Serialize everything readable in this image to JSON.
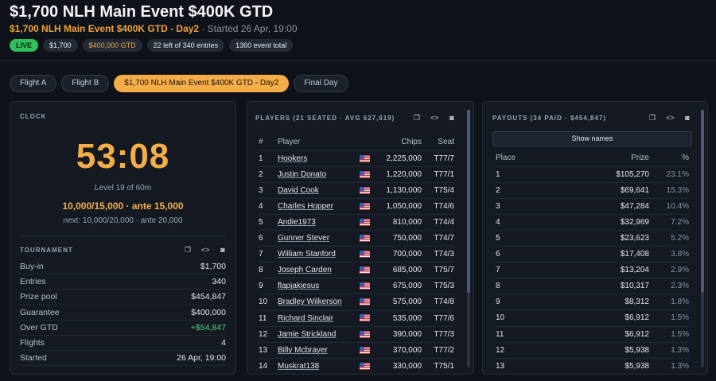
{
  "header": {
    "title": "$1,700 NLH Main Event $400K GTD",
    "event_name": "$1,700 NLH Main Event $400K GTD - Day2",
    "started": " · Started 26 Apr, 19:00",
    "badges": [
      "LIVE",
      "$1,700",
      "$400,000 GTD",
      "22 left of 340 entries",
      "1360 event total"
    ]
  },
  "tabs": [
    "Flight A",
    "Flight B",
    "$1,700 NLH Main Event $400K GTD - Day2",
    "Final Day"
  ],
  "clock": {
    "title": "CLOCK",
    "time": "53:08",
    "level": "Level 19 of 60m",
    "blinds": "10,000/15,000 · ante 15,000",
    "next": "next: 10,000/20,000 · ante 20,000"
  },
  "tournament": {
    "title": "TOURNAMENT",
    "rows": [
      {
        "label": "Buy-in",
        "value": "$1,700"
      },
      {
        "label": "Entries",
        "value": "340"
      },
      {
        "label": "Prize pool",
        "value": "$454,847"
      },
      {
        "label": "Guarantee",
        "value": "$400,000"
      },
      {
        "label": "Over GTD",
        "value": "+$54,847"
      },
      {
        "label": "Flights",
        "value": "4"
      },
      {
        "label": "Started",
        "value": "26 Apr, 19:00"
      }
    ]
  },
  "players": {
    "title": "PLAYERS (21 SEATED · AVG 627,619)",
    "columns": {
      "num": "#",
      "player": "Player",
      "chips": "Chips",
      "seat": "Seat"
    },
    "rows": [
      {
        "num": "1",
        "name": "Hookers",
        "chips": "2,225,000",
        "seat": "T77/7"
      },
      {
        "num": "2",
        "name": "Justin Donato",
        "chips": "1,220,000",
        "seat": "T77/1"
      },
      {
        "num": "3",
        "name": "David Cook",
        "chips": "1,130,000",
        "seat": "T75/4"
      },
      {
        "num": "4",
        "name": "Charles Hopper",
        "chips": "1,050,000",
        "seat": "T74/6"
      },
      {
        "num": "5",
        "name": "Andie1973",
        "chips": "810,000",
        "seat": "T74/4"
      },
      {
        "num": "6",
        "name": "Gunner Stever",
        "chips": "750,000",
        "seat": "T74/7"
      },
      {
        "num": "7",
        "name": "William Stanford",
        "chips": "700,000",
        "seat": "T74/3"
      },
      {
        "num": "8",
        "name": "Joseph Carden",
        "chips": "685,000",
        "seat": "T75/7"
      },
      {
        "num": "9",
        "name": "flapjakjesus",
        "chips": "675,000",
        "seat": "T75/3"
      },
      {
        "num": "10",
        "name": "Bradley Wilkerson",
        "chips": "575,000",
        "seat": "T74/8"
      },
      {
        "num": "11",
        "name": "Richard Sinclair",
        "chips": "535,000",
        "seat": "T77/6"
      },
      {
        "num": "12",
        "name": "Jamie Strickland",
        "chips": "390,000",
        "seat": "T77/3"
      },
      {
        "num": "13",
        "name": "Billy Mcbrayer",
        "chips": "370,000",
        "seat": "T77/2"
      },
      {
        "num": "14",
        "name": "Muskrat138",
        "chips": "330,000",
        "seat": "T75/1"
      }
    ]
  },
  "payouts": {
    "title": "PAYOUTS (34 PAID · $454,847)",
    "show_names": "Show names",
    "columns": {
      "place": "Place",
      "prize": "Prize",
      "pct": "%"
    },
    "rows": [
      {
        "place": "1",
        "prize": "$105,270",
        "pct": "23.1%"
      },
      {
        "place": "2",
        "prize": "$69,641",
        "pct": "15.3%"
      },
      {
        "place": "3",
        "prize": "$47,284",
        "pct": "10.4%"
      },
      {
        "place": "4",
        "prize": "$32,969",
        "pct": "7.2%"
      },
      {
        "place": "5",
        "prize": "$23,623",
        "pct": "5.2%"
      },
      {
        "place": "6",
        "prize": "$17,408",
        "pct": "3.8%"
      },
      {
        "place": "7",
        "prize": "$13,204",
        "pct": "2.9%"
      },
      {
        "place": "8",
        "prize": "$10,317",
        "pct": "2.3%"
      },
      {
        "place": "9",
        "prize": "$8,312",
        "pct": "1.8%"
      },
      {
        "place": "10",
        "prize": "$6,912",
        "pct": "1.5%"
      },
      {
        "place": "11",
        "prize": "$6,912",
        "pct": "1.5%"
      },
      {
        "place": "12",
        "prize": "$5,938",
        "pct": "1.3%"
      },
      {
        "place": "13",
        "prize": "$5,938",
        "pct": "1.3%"
      }
    ]
  },
  "icons": [
    "copy-icon",
    "code-icon",
    "camera-icon"
  ]
}
